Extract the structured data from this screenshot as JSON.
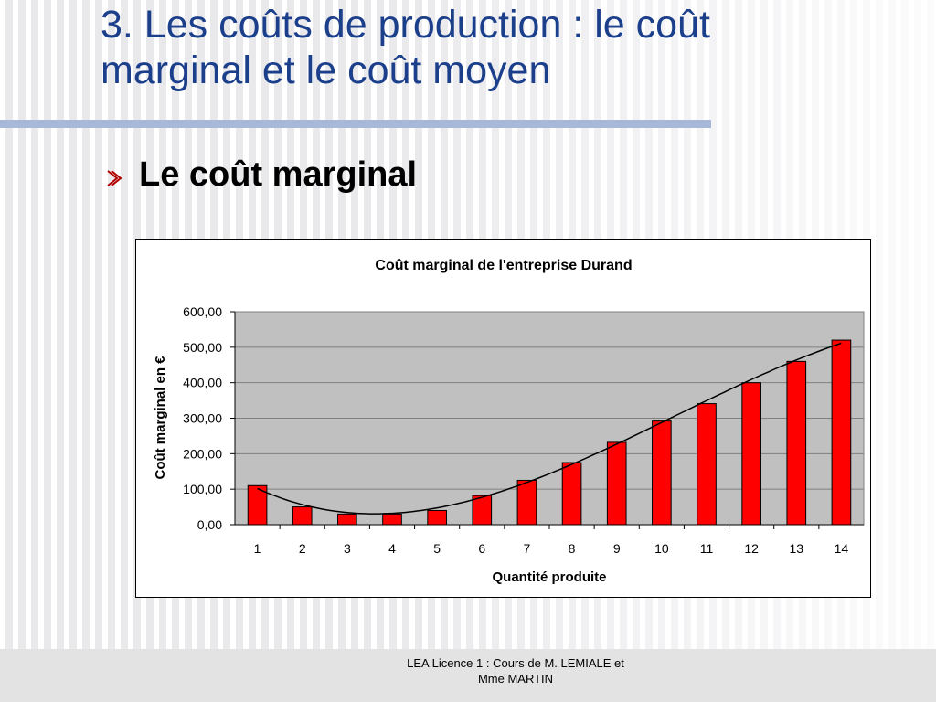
{
  "slide": {
    "title_line1": "3. Les coûts de production :  le coût",
    "title_line2": "marginal et le coût moyen",
    "subtitle": "Le coût marginal",
    "footer_line1": "LEA Licence 1 : Cours de M. LEMIALE et",
    "footer_line2": "Mme MARTIN"
  },
  "colors": {
    "title": "#1c3f8c",
    "bullet": "#b30000",
    "bar": "#ff0000",
    "plot_area": "#c0c0c0",
    "trend_line": "#000000"
  },
  "icons": {
    "bullet": "chevron-right-icon"
  },
  "chart_data": {
    "type": "bar",
    "title": "Coût marginal de l'entreprise Durand",
    "xlabel": "Quantité produite",
    "ylabel": "Coût marginal en €",
    "categories": [
      "1",
      "2",
      "3",
      "4",
      "5",
      "6",
      "7",
      "8",
      "9",
      "10",
      "11",
      "12",
      "13",
      "14"
    ],
    "values": [
      110,
      50,
      30,
      30,
      40,
      82,
      125,
      175,
      232,
      292,
      341,
      400,
      460,
      520
    ],
    "ylim": [
      0,
      600
    ],
    "yticks": [
      "0,00",
      "100,00",
      "200,00",
      "300,00",
      "400,00",
      "500,00",
      "600,00"
    ],
    "grid": true,
    "legend": "none",
    "trend_line": "smooth curve through the bars"
  }
}
